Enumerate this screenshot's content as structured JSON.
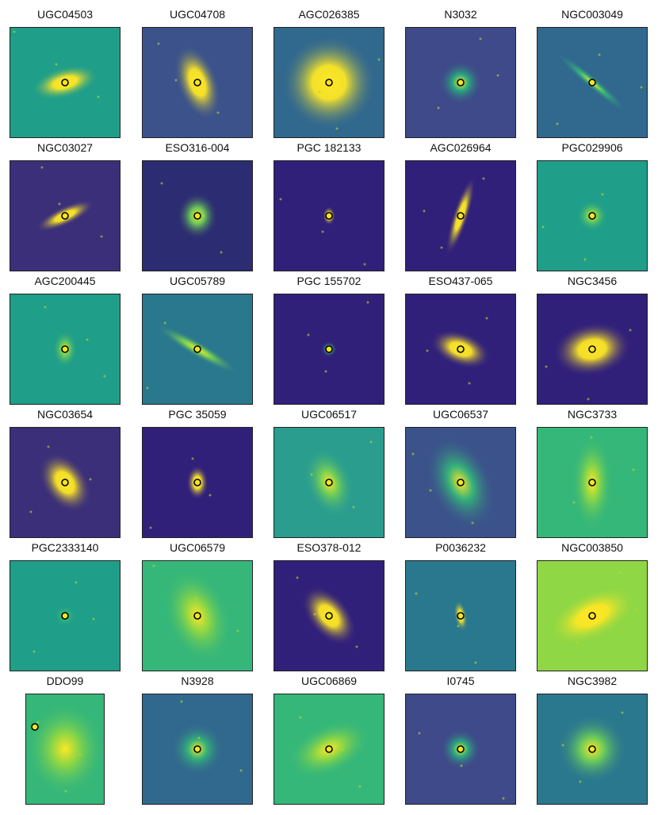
{
  "colors": {
    "dark": "#2b1e66",
    "mid": "#21908c",
    "bright": "#fde725",
    "yellow_green": "#b5de2b",
    "marker_fill": "#f7e51e",
    "marker_stroke": "#000000"
  },
  "galaxies": [
    {
      "name": "UGC04503"
    },
    {
      "name": "UGC04708"
    },
    {
      "name": "AGC026385"
    },
    {
      "name": "N3032"
    },
    {
      "name": "NGC003049"
    },
    {
      "name": "NGC03027"
    },
    {
      "name": "ESO316-004"
    },
    {
      "name": "PGC 182133"
    },
    {
      "name": "AGC026964"
    },
    {
      "name": "PGC029906"
    },
    {
      "name": "AGC200445"
    },
    {
      "name": "UGC05789"
    },
    {
      "name": "PGC 155702"
    },
    {
      "name": "ESO437-065"
    },
    {
      "name": "NGC3456"
    },
    {
      "name": "NGC03654"
    },
    {
      "name": "PGC 35059"
    },
    {
      "name": "UGC06517"
    },
    {
      "name": "UGC06537"
    },
    {
      "name": "NGC3733"
    },
    {
      "name": "PGC2333140"
    },
    {
      "name": "UGC06579"
    },
    {
      "name": "ESO378-012"
    },
    {
      "name": "P0036232"
    },
    {
      "name": "NGC003850"
    },
    {
      "name": "DDO99"
    },
    {
      "name": "N3928"
    },
    {
      "name": "UGC06869"
    },
    {
      "name": "I0745"
    },
    {
      "name": "NGC3982"
    }
  ]
}
